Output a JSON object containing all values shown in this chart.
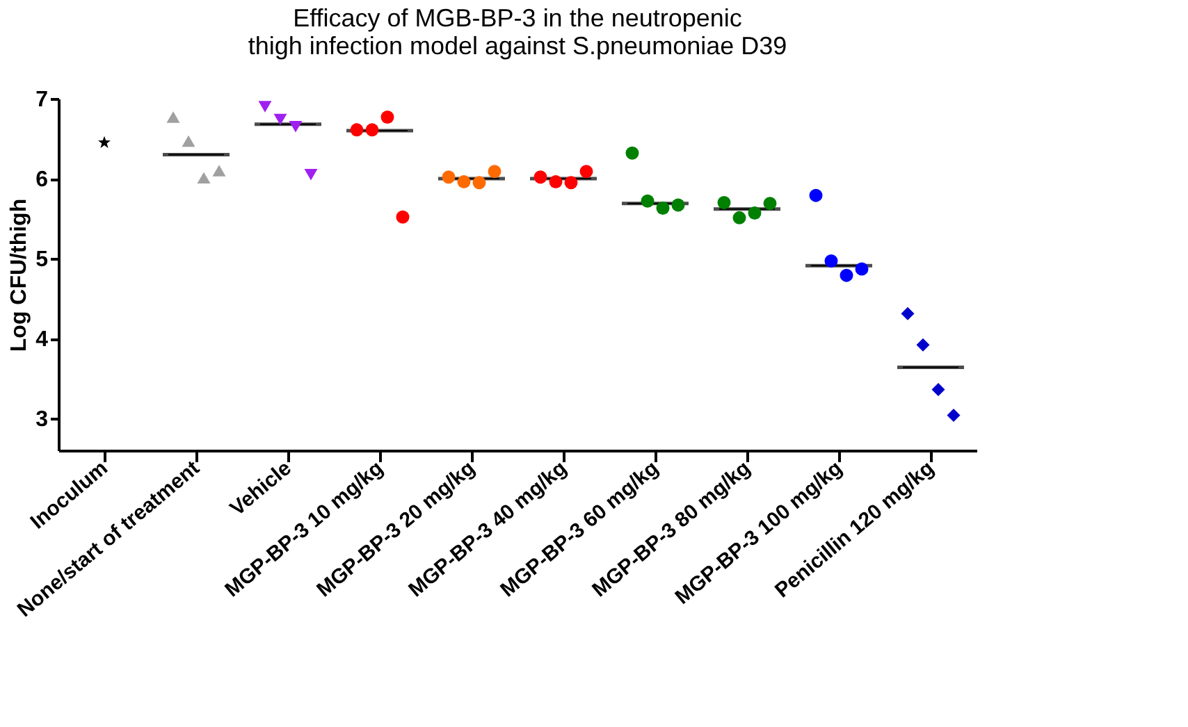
{
  "chart_data": {
    "type": "scatter",
    "title": [
      "Efficacy of MGB-BP-3 in the neutropenic",
      "thigh infection  model against S.pneumoniae D39"
    ],
    "ylabel": "Log CFU/thigh",
    "categories": [
      "Inoculum",
      "None/start of treatment",
      "Vehicle",
      "MGP-BP-3 10 mg/kg",
      "MGP-BP-3 20 mg/kg",
      "MGP-BP-3 40 mg/kg",
      "MGP-BP-3 60 mg/kg",
      "MGP-BP-3 80 mg/kg",
      "MGP-BP-3 100 mg/kg",
      "Penicillin 120 mg/kg"
    ],
    "series": [
      {
        "x": [
          "Inoculum"
        ],
        "values": [
          6.45
        ],
        "color": "#000000",
        "marker": "star"
      },
      {
        "x": [
          "None/start of treatment",
          "None/start of treatment",
          "None/start of treatment",
          "None/start of treatment"
        ],
        "values": [
          6.77,
          6.47,
          6.01,
          6.1
        ],
        "color": "#a0a0a0",
        "marker": "triangle"
      },
      {
        "x": [
          "Vehicle",
          "Vehicle",
          "Vehicle",
          "Vehicle"
        ],
        "values": [
          6.9,
          6.74,
          6.65,
          6.05
        ],
        "color": "#a020f0",
        "marker": "triangle-down"
      },
      {
        "x": [
          "MGP-BP-3 10 mg/kg",
          "MGP-BP-3 10 mg/kg",
          "MGP-BP-3 10 mg/kg",
          "MGP-BP-3 10 mg/kg"
        ],
        "values": [
          6.61,
          6.61,
          6.77,
          5.52
        ],
        "color": "#ff0000",
        "marker": "circle"
      },
      {
        "x": [
          "MGP-BP-3 20 mg/kg",
          "MGP-BP-3 20 mg/kg",
          "MGP-BP-3 20 mg/kg",
          "MGP-BP-3 20 mg/kg"
        ],
        "values": [
          6.02,
          5.96,
          5.95,
          6.09
        ],
        "color": "#ff6a00",
        "marker": "circle"
      },
      {
        "x": [
          "MGP-BP-3 40 mg/kg",
          "MGP-BP-3 40 mg/kg",
          "MGP-BP-3 40 mg/kg",
          "MGP-BP-3 40 mg/kg"
        ],
        "values": [
          6.02,
          5.96,
          5.95,
          6.09
        ],
        "color": "#ff0000",
        "marker": "circle"
      },
      {
        "x": [
          "MGP-BP-3 60 mg/kg",
          "MGP-BP-3 60 mg/kg",
          "MGP-BP-3 60 mg/kg",
          "MGP-BP-3 60 mg/kg"
        ],
        "values": [
          6.32,
          5.72,
          5.63,
          5.67
        ],
        "color": "#008000",
        "marker": "circle"
      },
      {
        "x": [
          "MGP-BP-3 80 mg/kg",
          "MGP-BP-3 80 mg/kg",
          "MGP-BP-3 80 mg/kg",
          "MGP-BP-3 80 mg/kg"
        ],
        "values": [
          5.7,
          5.51,
          5.57,
          5.69
        ],
        "color": "#008000",
        "marker": "circle"
      },
      {
        "x": [
          "MGP-BP-3 100 mg/kg",
          "MGP-BP-3 100 mg/kg",
          "MGP-BP-3 100 mg/kg",
          "MGP-BP-3 100 mg/kg"
        ],
        "values": [
          5.79,
          4.97,
          4.79,
          4.87
        ],
        "color": "#0000ff",
        "marker": "circle"
      },
      {
        "x": [
          "Penicillin 120 mg/kg",
          "Penicillin 120 mg/kg",
          "Penicillin 120 mg/kg",
          "Penicillin 120 mg/kg"
        ],
        "values": [
          4.31,
          3.92,
          3.36,
          3.04
        ],
        "color": "#0000cc",
        "marker": "diamond"
      },
      {
        "type": "box",
        "color": "#000000",
        "x": [
          "None/start of treatment",
          "Vehicle",
          "MGP-BP-3 10 mg/kg",
          "MGP-BP-3 20 mg/kg",
          "MGP-BP-3 40 mg/kg",
          "MGP-BP-3 60 mg/kg",
          "MGP-BP-3 80 mg/kg",
          "MGP-BP-3 100 mg/kg",
          "Penicillin 120 mg/kg"
        ],
        "boxes": [
          {
            "low": 6.3,
            "q1": 6.3,
            "median": 6.3,
            "q3": 6.3,
            "high": 6.3
          },
          {
            "low": 6.68,
            "q1": 6.68,
            "median": 6.68,
            "q3": 6.68,
            "high": 6.68
          },
          {
            "low": 6.6,
            "q1": 6.6,
            "median": 6.6,
            "q3": 6.6,
            "high": 6.6
          },
          {
            "low": 6.0,
            "q1": 6.0,
            "median": 6.0,
            "q3": 6.0,
            "high": 6.0
          },
          {
            "low": 6.0,
            "q1": 6.0,
            "median": 6.0,
            "q3": 6.0,
            "high": 6.0
          },
          {
            "low": 5.69,
            "q1": 5.69,
            "median": 5.69,
            "q3": 5.69,
            "high": 5.69
          },
          {
            "low": 5.62,
            "q1": 5.62,
            "median": 5.62,
            "q3": 5.62,
            "high": 5.62
          },
          {
            "low": 4.91,
            "q1": 4.91,
            "median": 4.91,
            "q3": 4.91,
            "high": 4.91
          },
          {
            "low": 3.64,
            "q1": 3.64,
            "median": 3.64,
            "q3": 3.64,
            "high": 3.64
          }
        ]
      }
    ],
    "ylim": [
      2.6,
      7.0
    ],
    "yticks": [
      3,
      4,
      5,
      6,
      7
    ],
    "grid": false
  }
}
